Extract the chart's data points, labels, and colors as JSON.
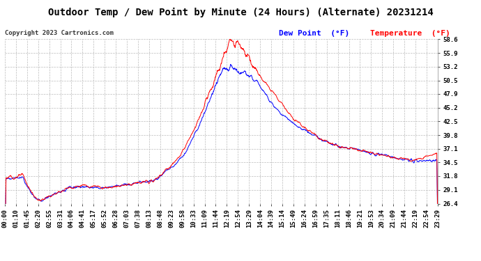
{
  "title": "Outdoor Temp / Dew Point by Minute (24 Hours) (Alternate) 20231214",
  "copyright": "Copyright 2023 Cartronics.com",
  "legend_dew": "Dew Point  (°F)",
  "legend_temp": "Temperature  (°F)",
  "dew_color": "#0000ff",
  "temp_color": "#ff0000",
  "bg_color": "#ffffff",
  "plot_bg_color": "#ffffff",
  "grid_color": "#bbbbbb",
  "yticks": [
    26.4,
    29.1,
    31.8,
    34.5,
    37.1,
    39.8,
    42.5,
    45.2,
    47.9,
    50.5,
    53.2,
    55.9,
    58.6
  ],
  "ylim": [
    26.4,
    58.6
  ],
  "xtick_labels": [
    "00:00",
    "01:10",
    "01:45",
    "02:20",
    "02:55",
    "03:31",
    "04:06",
    "04:41",
    "05:17",
    "05:52",
    "06:28",
    "07:03",
    "07:38",
    "08:13",
    "08:48",
    "09:23",
    "09:58",
    "10:33",
    "11:09",
    "11:44",
    "12:19",
    "12:54",
    "13:29",
    "14:04",
    "14:39",
    "15:14",
    "15:49",
    "16:24",
    "16:59",
    "17:35",
    "18:11",
    "18:46",
    "19:21",
    "19:53",
    "20:34",
    "21:09",
    "21:44",
    "22:19",
    "22:54",
    "23:29"
  ],
  "title_fontsize": 10,
  "copyright_fontsize": 6.5,
  "legend_fontsize": 8,
  "tick_fontsize": 6.5
}
